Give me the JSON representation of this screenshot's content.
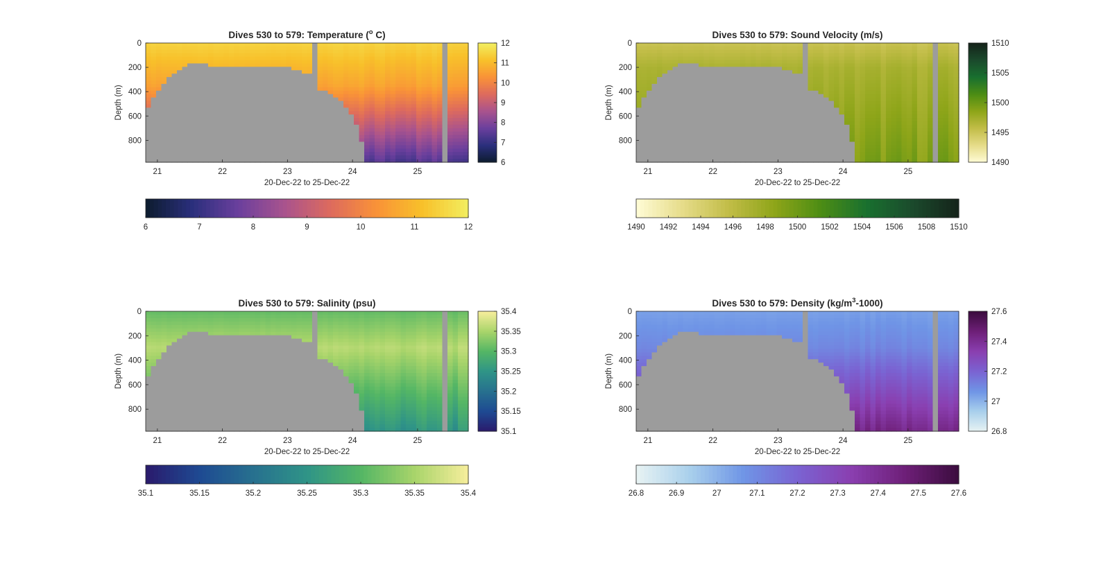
{
  "figure": {
    "background": "#ffffff"
  },
  "chart_data": [
    {
      "type": "heatmap",
      "id": "temperature",
      "title_prefix": "Dives 530 to 579: Temperature (",
      "title_sup": "o",
      "title_suffix": " C)",
      "xlabel": "20-Dec-22 to 25-Dec-22",
      "ylabel": "Depth (m)",
      "xticks": [
        21,
        22,
        23,
        24,
        25
      ],
      "yticks": [
        0,
        200,
        400,
        600,
        800
      ],
      "xlim": [
        20.82,
        25.78
      ],
      "ylim": [
        0,
        980
      ],
      "reversed_y": true,
      "clim": [
        6,
        12
      ],
      "colorbar_ticks_vertical": [
        12,
        11,
        10,
        9,
        8,
        7,
        6
      ],
      "colorbar_ticks_horizontal": [
        6,
        7,
        8,
        9,
        10,
        11,
        12
      ],
      "colormap": [
        "#0d1c2e",
        "#2a2f7c",
        "#6a3f9d",
        "#a8538e",
        "#dd6a5e",
        "#f99238",
        "#f8c02a",
        "#f2ee60"
      ],
      "surface_value": 11.5,
      "deep_value": 7.4,
      "transition_depth": 350,
      "thermocline_values": [
        10.6,
        10.0,
        8.8
      ],
      "missing_color": "#9c9c9c"
    },
    {
      "type": "heatmap",
      "id": "sound-velocity",
      "title_prefix": "Dives 530 to 579: Sound Velocity (m/s)",
      "title_sup": "",
      "title_suffix": "",
      "xlabel": "20-Dec-22 to 25-Dec-22",
      "ylabel": "Depth (m)",
      "xticks": [
        21,
        22,
        23,
        24,
        25
      ],
      "yticks": [
        0,
        200,
        400,
        600,
        800
      ],
      "xlim": [
        20.82,
        25.78
      ],
      "ylim": [
        0,
        980
      ],
      "reversed_y": true,
      "clim": [
        1490,
        1510
      ],
      "colorbar_ticks_vertical": [
        1510,
        1505,
        1500,
        1495,
        1490
      ],
      "colorbar_ticks_horizontal": [
        1490,
        1492,
        1494,
        1496,
        1498,
        1500,
        1502,
        1504,
        1506,
        1508,
        1510
      ],
      "colormap": [
        "#fffcd6",
        "#e6dc8a",
        "#c2bd48",
        "#8ea519",
        "#4d8d14",
        "#19702f",
        "#1b4a2c",
        "#15231a"
      ],
      "surface_value": 1495.2,
      "deep_value": 1499.2,
      "transition_depth": 200,
      "thermocline_values": [
        1497.0,
        1498.6,
        1499.0
      ],
      "missing_color": "#9c9c9c"
    },
    {
      "type": "heatmap",
      "id": "salinity",
      "title_prefix": "Dives 530 to 579: Salinity (psu)",
      "title_sup": "",
      "title_suffix": "",
      "xlabel": "20-Dec-22 to 25-Dec-22",
      "ylabel": "Depth (m)",
      "xticks": [
        21,
        22,
        23,
        24,
        25
      ],
      "yticks": [
        0,
        200,
        400,
        600,
        800
      ],
      "xlim": [
        20.82,
        25.78
      ],
      "ylim": [
        0,
        980
      ],
      "reversed_y": true,
      "clim": [
        35.1,
        35.4
      ],
      "colorbar_ticks_vertical": [
        35.4,
        35.35,
        35.3,
        35.25,
        35.2,
        35.15,
        35.1
      ],
      "colorbar_ticks_horizontal": [
        35.1,
        35.15,
        35.2,
        35.25,
        35.3,
        35.35,
        35.4
      ],
      "colormap": [
        "#2a1a6c",
        "#1e4a92",
        "#27708f",
        "#2f9487",
        "#54b665",
        "#a8d46a",
        "#f7ee9c"
      ],
      "surface_value": 35.31,
      "deep_value": 35.25,
      "transition_depth": 300,
      "thermocline_values": [
        35.36,
        35.33,
        35.27
      ],
      "missing_color": "#9c9c9c"
    },
    {
      "type": "heatmap",
      "id": "density",
      "title_prefix": "Dives 530 to 579: Density (kg/m",
      "title_sup": "3",
      "title_suffix": "-1000)",
      "xlabel": "20-Dec-22 to 25-Dec-22",
      "ylabel": "Depth (m)",
      "xticks": [
        21,
        22,
        23,
        24,
        25
      ],
      "yticks": [
        0,
        200,
        400,
        600,
        800
      ],
      "xlim": [
        20.82,
        25.78
      ],
      "ylim": [
        0,
        980
      ],
      "reversed_y": true,
      "clim": [
        26.8,
        27.6
      ],
      "colorbar_ticks_vertical": [
        27.6,
        27.4,
        27.2,
        27,
        26.8
      ],
      "colorbar_ticks_horizontal": [
        26.8,
        26.9,
        27,
        27.1,
        27.2,
        27.3,
        27.4,
        27.5,
        27.6
      ],
      "colormap": [
        "#e8f3f3",
        "#a9d0ec",
        "#6f95e6",
        "#7a63d2",
        "#8a3fb0",
        "#6e1f78",
        "#3b0c3e"
      ],
      "surface_value": 27.04,
      "deep_value": 27.42,
      "transition_depth": 300,
      "thermocline_values": [
        27.1,
        27.2,
        27.3
      ],
      "missing_color": "#9c9c9c"
    }
  ]
}
